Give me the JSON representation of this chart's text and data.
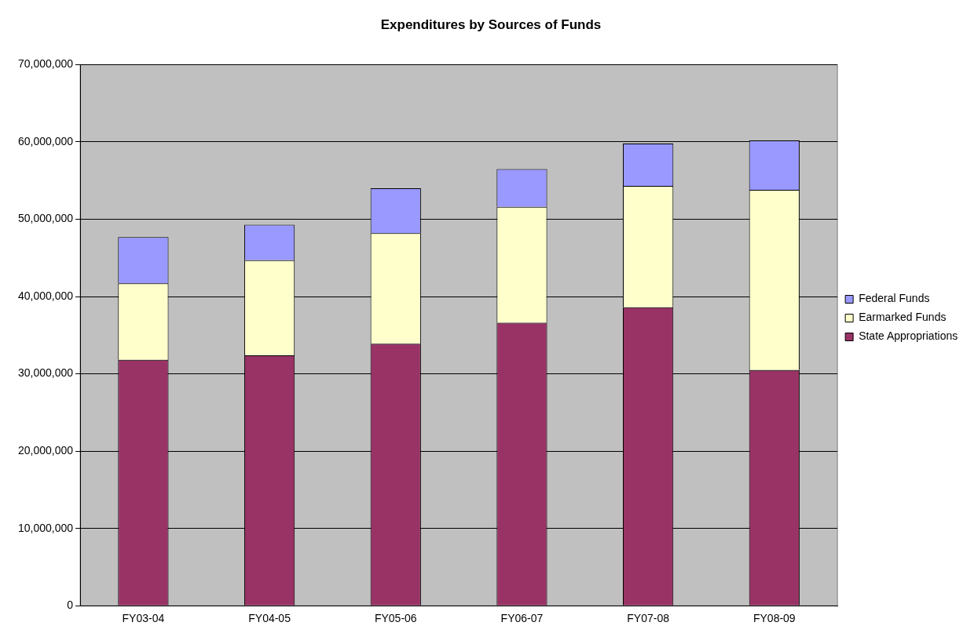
{
  "chart_data": {
    "type": "bar",
    "title": "Expenditures by Sources of Funds",
    "categories": [
      "FY03-04",
      "FY04-05",
      "FY05-06",
      "FY06-07",
      "FY07-08",
      "FY08-09"
    ],
    "stacked": true,
    "series": [
      {
        "name": "State Appropriations",
        "color": "#993366",
        "values": [
          31800000,
          32400000,
          33900000,
          36600000,
          38600000,
          30500000
        ]
      },
      {
        "name": "Earmarked Funds",
        "color": "#ffffcc",
        "values": [
          9900000,
          12300000,
          14300000,
          15000000,
          15700000,
          23300000
        ]
      },
      {
        "name": "Federal Funds",
        "color": "#9999ff",
        "values": [
          6000000,
          4600000,
          5800000,
          4900000,
          5500000,
          6400000
        ]
      }
    ],
    "ylim": [
      0,
      70000000
    ],
    "yticks": [
      {
        "value": 0,
        "label": "0"
      },
      {
        "value": 10000000,
        "label": "10,000,000"
      },
      {
        "value": 20000000,
        "label": "20,000,000"
      },
      {
        "value": 30000000,
        "label": "30,000,000"
      },
      {
        "value": 40000000,
        "label": "40,000,000"
      },
      {
        "value": 50000000,
        "label": "50,000,000"
      },
      {
        "value": 60000000,
        "label": "60,000,000"
      },
      {
        "value": 70000000,
        "label": "70,000,000"
      }
    ],
    "grid": "y",
    "legend": "right"
  }
}
